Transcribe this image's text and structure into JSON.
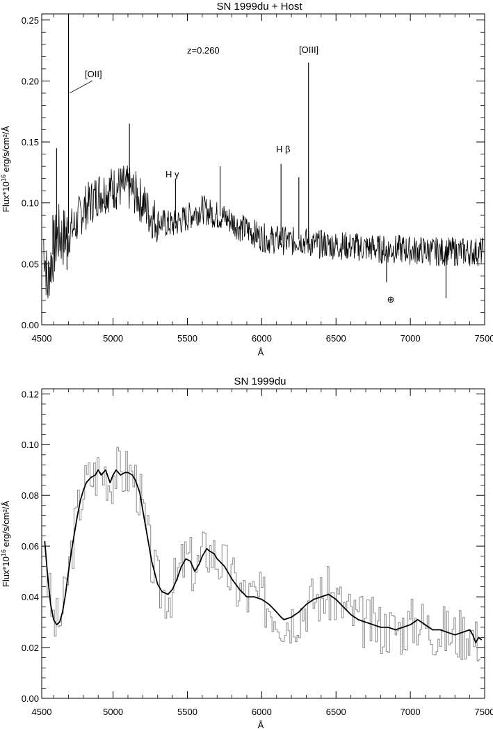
{
  "chart_data": [
    {
      "type": "line",
      "title": "SN 1999du + Host",
      "xlabel": "Å",
      "ylabel_main": "Flux*10",
      "ylabel_exp": "16",
      "ylabel_rest": " erg/s/cm²/Å",
      "xlim": [
        4520,
        7500
      ],
      "ylim": [
        0.0,
        0.255
      ],
      "xticks": [
        4500,
        5000,
        5500,
        6000,
        6500,
        7000,
        7500
      ],
      "yticks": [
        "0.00",
        "0.05",
        "0.10",
        "0.15",
        "0.20",
        "0.25"
      ],
      "series": [
        {
          "x": [
            4530,
            4540,
            4550,
            4560,
            4570,
            4580,
            4600,
            4620,
            4640,
            4660,
            4680,
            4700,
            4720,
            4740,
            4760,
            4780,
            4800,
            4850,
            4900,
            4950,
            5000,
            5050,
            5100,
            5150,
            5200,
            5250,
            5300,
            5350,
            5400,
            5450,
            5500,
            5550,
            5600,
            5650,
            5700,
            5750,
            5800,
            5850,
            5900,
            5950,
            6000,
            6050,
            6100,
            6150,
            6200,
            6250,
            6300,
            6350,
            6400,
            6450,
            6500,
            6550,
            6600,
            6650,
            6700,
            6750,
            6800,
            6850,
            6900,
            6950,
            7000,
            7050,
            7100,
            7150,
            7200,
            7250,
            7300,
            7350,
            7400,
            7450,
            7490
          ],
          "y": [
            0.07,
            0.06,
            0.045,
            0.03,
            0.045,
            0.05,
            0.06,
            0.07,
            0.075,
            0.07,
            0.075,
            0.075,
            0.078,
            0.08,
            0.085,
            0.09,
            0.095,
            0.1,
            0.108,
            0.11,
            0.112,
            0.113,
            0.112,
            0.108,
            0.1,
            0.09,
            0.085,
            0.083,
            0.082,
            0.085,
            0.088,
            0.092,
            0.095,
            0.092,
            0.09,
            0.088,
            0.085,
            0.08,
            0.078,
            0.075,
            0.072,
            0.07,
            0.07,
            0.069,
            0.068,
            0.07,
            0.068,
            0.066,
            0.066,
            0.066,
            0.065,
            0.065,
            0.064,
            0.064,
            0.063,
            0.063,
            0.062,
            0.062,
            0.062,
            0.062,
            0.061,
            0.061,
            0.061,
            0.06,
            0.06,
            0.06,
            0.06,
            0.06,
            0.06,
            0.06,
            0.06
          ]
        }
      ],
      "lines": [
        {
          "x": 4700,
          "y": 0.255
        },
        {
          "x": 4595,
          "y": 0.09
        },
        {
          "x": 4620,
          "y": 0.145
        },
        {
          "x": 5110,
          "y": 0.165
        },
        {
          "x": 5420,
          "y": 0.12
        },
        {
          "x": 5720,
          "y": 0.13
        },
        {
          "x": 6130,
          "y": 0.132
        },
        {
          "x": 6250,
          "y": 0.121
        },
        {
          "x": 6315,
          "y": 0.215
        },
        {
          "x": 4690,
          "y": 0.045
        },
        {
          "x": 6840,
          "y": 0.035
        },
        {
          "x": 7240,
          "y": 0.022
        }
      ],
      "annotations": {
        "redshift": "z=0.260",
        "oii": "[OII]",
        "oiii": "[OIII]",
        "hbeta": "H β",
        "hgamma": "H γ",
        "telluric": "⊕"
      }
    },
    {
      "type": "line",
      "title": "SN 1999du",
      "xlabel": "Å",
      "ylabel_main": "Flux*10",
      "ylabel_exp": "16",
      "ylabel_rest": " erg/s/cm²/Å",
      "xlim": [
        4520,
        7500
      ],
      "ylim": [
        0.0,
        0.122
      ],
      "xticks": [
        4500,
        5000,
        5500,
        6000,
        6500,
        7000,
        7500
      ],
      "yticks": [
        "0.00",
        "0.02",
        "0.04",
        "0.06",
        "0.08",
        "0.10",
        "0.12"
      ],
      "series": [
        {
          "x": [
            4540,
            4560,
            4580,
            4600,
            4620,
            4640,
            4660,
            4680,
            4700,
            4720,
            4740,
            4760,
            4780,
            4800,
            4820,
            4850,
            4880,
            4900,
            4920,
            4950,
            4980,
            5000,
            5020,
            5050,
            5080,
            5100,
            5130,
            5150,
            5180,
            5200,
            5230,
            5260,
            5300,
            5330,
            5370,
            5400,
            5430,
            5460,
            5490,
            5520,
            5550,
            5580,
            5600,
            5630,
            5650,
            5680,
            5700,
            5750,
            5800,
            5850,
            5900,
            5950,
            6000,
            6050,
            6100,
            6130,
            6150,
            6200,
            6250,
            6300,
            6350,
            6400,
            6450,
            6500,
            6550,
            6600,
            6650,
            6700,
            6750,
            6800,
            6850,
            6900,
            6950,
            7000,
            7050,
            7100,
            7150,
            7200,
            7250,
            7300,
            7350,
            7400,
            7420,
            7440,
            7460,
            7480
          ],
          "y": [
            0.062,
            0.048,
            0.037,
            0.031,
            0.029,
            0.03,
            0.034,
            0.041,
            0.05,
            0.058,
            0.065,
            0.072,
            0.078,
            0.082,
            0.085,
            0.087,
            0.088,
            0.09,
            0.088,
            0.09,
            0.085,
            0.088,
            0.09,
            0.088,
            0.089,
            0.089,
            0.088,
            0.086,
            0.081,
            0.074,
            0.064,
            0.054,
            0.045,
            0.042,
            0.041,
            0.043,
            0.047,
            0.052,
            0.055,
            0.054,
            0.05,
            0.053,
            0.056,
            0.059,
            0.058,
            0.057,
            0.055,
            0.052,
            0.047,
            0.043,
            0.04,
            0.04,
            0.039,
            0.037,
            0.034,
            0.032,
            0.031,
            0.032,
            0.034,
            0.037,
            0.039,
            0.04,
            0.041,
            0.039,
            0.036,
            0.033,
            0.031,
            0.03,
            0.029,
            0.028,
            0.028,
            0.027,
            0.028,
            0.029,
            0.031,
            0.029,
            0.027,
            0.027,
            0.026,
            0.025,
            0.026,
            0.027,
            0.025,
            0.022,
            0.024,
            0.023
          ]
        }
      ]
    }
  ]
}
